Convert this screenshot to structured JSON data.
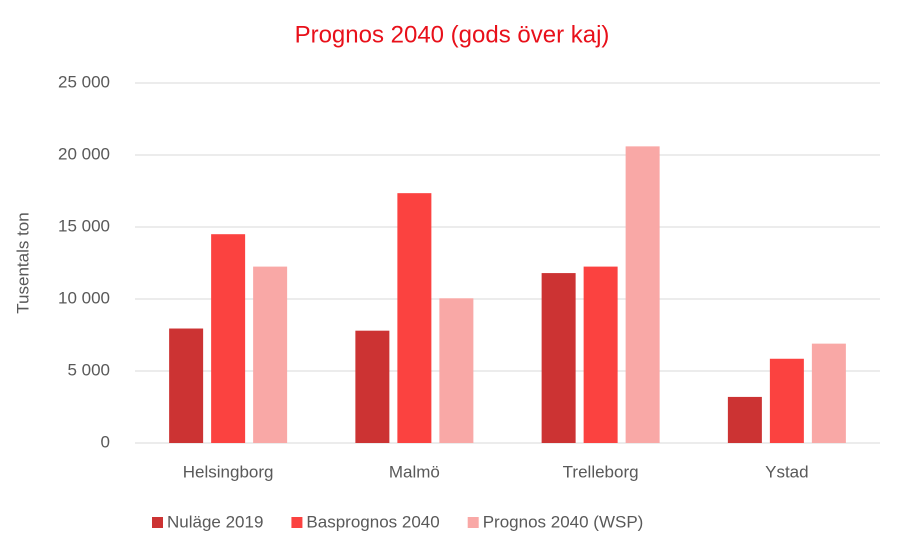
{
  "chart_data": {
    "type": "bar",
    "title": "Prognos 2040 (gods över kaj)",
    "y_label": "Tusentals ton",
    "categories": [
      "Helsingborg",
      "Malmö",
      "Trelleborg",
      "Ystad"
    ],
    "series": [
      {
        "name": "Nuläge 2019",
        "color": "#cc3333",
        "values": [
          7950,
          7800,
          11800,
          3200
        ]
      },
      {
        "name": "Basprognos 2040",
        "color": "#fb4240",
        "values": [
          14500,
          17350,
          12250,
          5850
        ]
      },
      {
        "name": "Prognos 2040 (WSP)",
        "color": "#f9a8a6",
        "values": [
          12250,
          10050,
          20600,
          6900
        ]
      }
    ],
    "ylim": [
      0,
      25000
    ],
    "yticks": [
      0,
      {
        "value": 5000,
        "label": "5 000"
      },
      {
        "value": 10000,
        "label": "10 000"
      },
      {
        "value": 15000,
        "label": "15 000"
      },
      {
        "value": 20000,
        "label": "20 000"
      },
      {
        "value": 25000,
        "label": "25 000"
      }
    ],
    "grid": true,
    "legend": "bottom"
  }
}
